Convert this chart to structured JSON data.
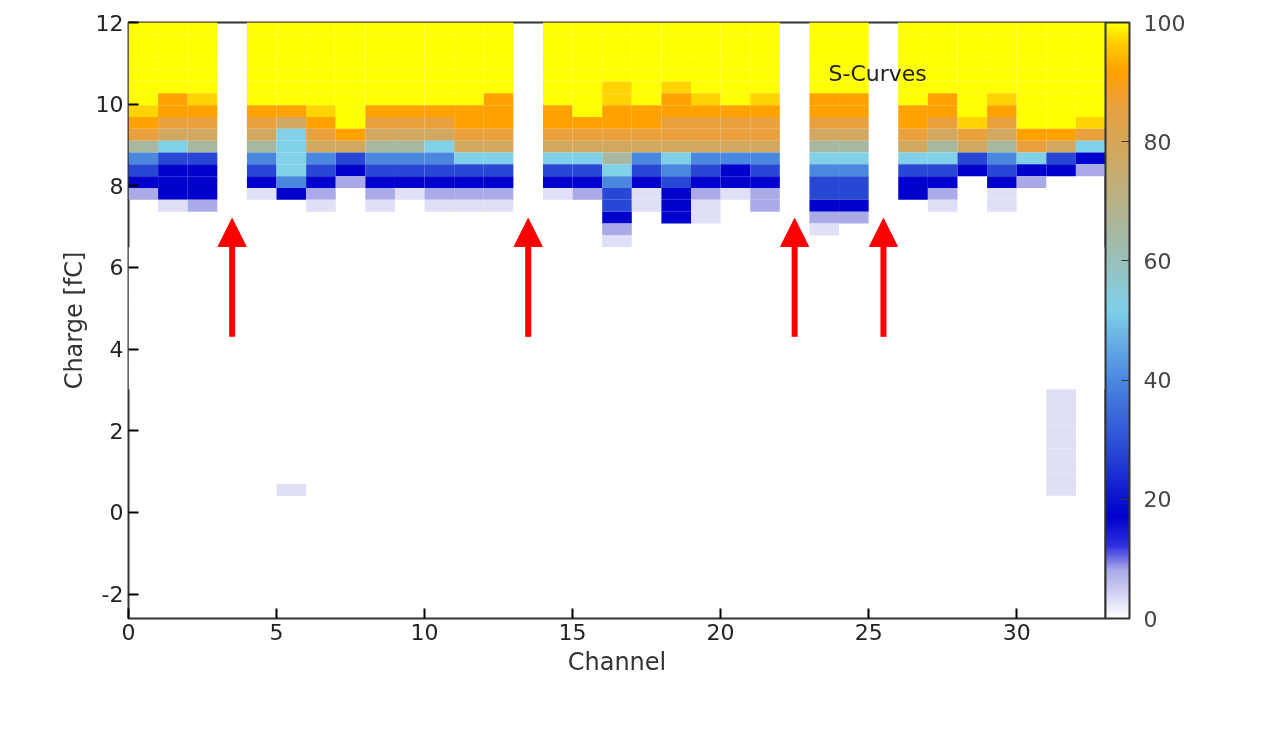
{
  "chart_data": {
    "type": "heatmap",
    "xlabel": "Channel",
    "ylabel": "Charge [fC]",
    "annotations": [
      "S-Curves"
    ],
    "xlim": [
      0,
      33
    ],
    "xticks": [
      0,
      5,
      10,
      15,
      20,
      25,
      30
    ],
    "ylim": [
      -2.6,
      12
    ],
    "yticks": [
      -2,
      0,
      2,
      4,
      6,
      8,
      10,
      12
    ],
    "clim": [
      0,
      100
    ],
    "cticks": [
      0,
      20,
      40,
      60,
      80,
      100
    ],
    "x": [
      0.5,
      1.5,
      2.5,
      3.5,
      4.5,
      5.5,
      6.5,
      7.5,
      8.5,
      9.5,
      10.5,
      11.5,
      12.5,
      13.5,
      14.5,
      15.5,
      16.5,
      17.5,
      18.5,
      19.5,
      20.5,
      21.5,
      22.5,
      23.5,
      24.5,
      25.5,
      26.5,
      27.5,
      28.5,
      29.5,
      30.5,
      31.5,
      32.5
    ],
    "y": [
      11.86,
      11.57,
      11.28,
      10.99,
      10.7,
      10.41,
      10.12,
      9.83,
      9.54,
      9.25,
      8.96,
      8.67,
      8.38,
      8.09,
      7.8,
      7.51,
      7.22,
      6.93,
      6.64,
      6.35,
      6.06,
      5.77,
      5.48,
      5.19,
      4.9,
      4.61,
      4.32,
      4.03,
      3.74,
      3.45,
      3.16,
      2.87,
      2.58,
      2.29,
      2.0,
      1.71,
      1.42,
      1.13,
      0.84,
      0.55
    ],
    "cells": [
      [
        100,
        100,
        100,
        null,
        100,
        100,
        100,
        100,
        100,
        100,
        100,
        100,
        100,
        null,
        100,
        100,
        100,
        100,
        100,
        100,
        100,
        100,
        null,
        100,
        100,
        null,
        100,
        100,
        100,
        100,
        100,
        100,
        100
      ],
      [
        100,
        100,
        100,
        null,
        100,
        100,
        100,
        100,
        100,
        100,
        100,
        100,
        100,
        null,
        100,
        100,
        100,
        100,
        100,
        100,
        100,
        100,
        null,
        100,
        100,
        null,
        100,
        100,
        100,
        100,
        100,
        100,
        100
      ],
      [
        100,
        100,
        100,
        null,
        100,
        100,
        100,
        100,
        100,
        100,
        100,
        100,
        100,
        null,
        100,
        100,
        100,
        100,
        100,
        100,
        100,
        100,
        null,
        100,
        100,
        null,
        100,
        100,
        100,
        100,
        100,
        100,
        100
      ],
      [
        100,
        100,
        100,
        null,
        100,
        100,
        100,
        100,
        100,
        100,
        100,
        100,
        100,
        null,
        100,
        100,
        100,
        100,
        100,
        100,
        100,
        100,
        null,
        100,
        100,
        null,
        100,
        100,
        100,
        100,
        100,
        100,
        100
      ],
      [
        100,
        100,
        100,
        null,
        100,
        100,
        100,
        100,
        100,
        100,
        100,
        100,
        100,
        null,
        100,
        100,
        100,
        100,
        100,
        100,
        100,
        100,
        null,
        100,
        100,
        null,
        100,
        100,
        100,
        100,
        100,
        100,
        100
      ],
      [
        100,
        100,
        100,
        null,
        100,
        100,
        100,
        100,
        100,
        100,
        100,
        100,
        100,
        null,
        100,
        100,
        97,
        100,
        97,
        100,
        100,
        100,
        null,
        100,
        100,
        null,
        100,
        100,
        100,
        100,
        100,
        100,
        100
      ],
      [
        100,
        92,
        97,
        null,
        100,
        100,
        100,
        100,
        100,
        100,
        100,
        100,
        92,
        null,
        100,
        100,
        97,
        100,
        92,
        97,
        100,
        97,
        null,
        92,
        92,
        null,
        100,
        92,
        100,
        97,
        100,
        100,
        100
      ],
      [
        97,
        92,
        92,
        null,
        92,
        92,
        97,
        100,
        92,
        92,
        92,
        92,
        92,
        null,
        92,
        100,
        92,
        92,
        92,
        92,
        92,
        92,
        null,
        92,
        92,
        null,
        92,
        92,
        100,
        92,
        100,
        100,
        100
      ],
      [
        92,
        86,
        86,
        null,
        86,
        78,
        92,
        100,
        86,
        86,
        86,
        92,
        92,
        null,
        92,
        92,
        92,
        92,
        86,
        86,
        86,
        86,
        null,
        86,
        86,
        null,
        92,
        86,
        97,
        86,
        100,
        100,
        97
      ],
      [
        86,
        78,
        78,
        null,
        78,
        52,
        86,
        92,
        78,
        78,
        78,
        86,
        86,
        null,
        86,
        86,
        86,
        86,
        86,
        86,
        86,
        86,
        null,
        78,
        78,
        null,
        86,
        78,
        86,
        78,
        92,
        92,
        86
      ],
      [
        65,
        52,
        65,
        null,
        65,
        52,
        78,
        78,
        65,
        65,
        52,
        78,
        78,
        null,
        78,
        78,
        78,
        78,
        78,
        78,
        78,
        78,
        null,
        65,
        65,
        null,
        78,
        65,
        78,
        65,
        86,
        78,
        52
      ],
      [
        40,
        28,
        28,
        null,
        40,
        52,
        40,
        28,
        40,
        40,
        40,
        52,
        52,
        null,
        52,
        52,
        65,
        40,
        52,
        40,
        40,
        40,
        null,
        52,
        52,
        null,
        52,
        52,
        28,
        40,
        52,
        28,
        17
      ],
      [
        28,
        17,
        17,
        null,
        28,
        52,
        28,
        17,
        28,
        28,
        28,
        28,
        28,
        null,
        28,
        28,
        52,
        28,
        40,
        28,
        17,
        28,
        null,
        40,
        40,
        null,
        28,
        28,
        17,
        28,
        17,
        17,
        8
      ],
      [
        17,
        17,
        17,
        null,
        17,
        40,
        17,
        8,
        17,
        17,
        17,
        17,
        17,
        null,
        17,
        17,
        40,
        17,
        28,
        17,
        17,
        17,
        null,
        28,
        28,
        null,
        17,
        17,
        null,
        17,
        8,
        null,
        null
      ],
      [
        8,
        17,
        17,
        null,
        3,
        17,
        8,
        null,
        8,
        3,
        8,
        8,
        8,
        null,
        3,
        8,
        28,
        3,
        17,
        8,
        3,
        8,
        null,
        28,
        28,
        null,
        17,
        8,
        null,
        3,
        null,
        null,
        null
      ],
      [
        null,
        3,
        8,
        null,
        null,
        null,
        3,
        null,
        3,
        null,
        3,
        3,
        3,
        null,
        null,
        null,
        28,
        3,
        17,
        3,
        null,
        8,
        null,
        17,
        17,
        null,
        null,
        3,
        null,
        3,
        null,
        null,
        null
      ],
      [
        null,
        null,
        null,
        null,
        null,
        null,
        null,
        null,
        null,
        null,
        null,
        null,
        null,
        null,
        null,
        null,
        17,
        null,
        17,
        3,
        null,
        null,
        null,
        8,
        8,
        null,
        null,
        null,
        null,
        null,
        null,
        null,
        null
      ],
      [
        null,
        null,
        null,
        null,
        null,
        null,
        null,
        null,
        null,
        null,
        null,
        null,
        null,
        null,
        null,
        null,
        8,
        null,
        null,
        null,
        null,
        null,
        null,
        3,
        null,
        null,
        null,
        null,
        null,
        null,
        null,
        null,
        null
      ],
      [
        null,
        null,
        null,
        null,
        null,
        null,
        null,
        null,
        null,
        null,
        null,
        null,
        null,
        null,
        null,
        null,
        3,
        null,
        null,
        null,
        null,
        null,
        null,
        null,
        null,
        null,
        null,
        null,
        null,
        null,
        null,
        null,
        null
      ],
      [
        0,
        0,
        0,
        null,
        0,
        0,
        0,
        0,
        0,
        0,
        0,
        0,
        0,
        null,
        0,
        0,
        0,
        0,
        0,
        0,
        0,
        0,
        null,
        0,
        0,
        null,
        0,
        0,
        0,
        0,
        0,
        0,
        0
      ],
      [
        0,
        0,
        0,
        null,
        0,
        0,
        0,
        0,
        0,
        0,
        0,
        0,
        0,
        null,
        0,
        0,
        0,
        0,
        0,
        0,
        0,
        0,
        null,
        0,
        0,
        null,
        0,
        0,
        0,
        0,
        0,
        0,
        0
      ],
      [
        0,
        0,
        0,
        null,
        0,
        0,
        0,
        0,
        0,
        0,
        0,
        0,
        0,
        null,
        0,
        0,
        0,
        0,
        0,
        0,
        0,
        0,
        null,
        0,
        0,
        null,
        0,
        0,
        0,
        0,
        0,
        0,
        0
      ],
      [
        0,
        0,
        0,
        null,
        0,
        0,
        0,
        0,
        0,
        0,
        0,
        0,
        0,
        null,
        0,
        0,
        0,
        0,
        0,
        0,
        0,
        0,
        null,
        0,
        0,
        null,
        0,
        0,
        0,
        0,
        0,
        0,
        0
      ],
      [
        0,
        0,
        0,
        null,
        0,
        0,
        0,
        0,
        0,
        0,
        0,
        0,
        0,
        null,
        0,
        0,
        0,
        0,
        0,
        0,
        0,
        0,
        null,
        0,
        0,
        null,
        0,
        0,
        0,
        0,
        0,
        0,
        0
      ],
      [
        0,
        0,
        0,
        null,
        0,
        0,
        0,
        0,
        0,
        0,
        0,
        0,
        0,
        null,
        0,
        0,
        0,
        0,
        0,
        0,
        0,
        0,
        null,
        0,
        0,
        null,
        0,
        0,
        0,
        0,
        0,
        0,
        0
      ],
      [
        0,
        0,
        0,
        null,
        0,
        0,
        0,
        0,
        0,
        0,
        0,
        0,
        0,
        null,
        0,
        0,
        0,
        0,
        0,
        0,
        0,
        0,
        null,
        0,
        0,
        null,
        0,
        0,
        0,
        0,
        0,
        0,
        0
      ],
      [
        0,
        0,
        0,
        null,
        0,
        0,
        0,
        0,
        0,
        0,
        0,
        0,
        0,
        null,
        0,
        0,
        0,
        0,
        0,
        0,
        0,
        0,
        null,
        0,
        0,
        null,
        0,
        0,
        0,
        0,
        0,
        0,
        0
      ],
      [
        0,
        0,
        0,
        null,
        0,
        0,
        0,
        0,
        0,
        0,
        0,
        0,
        0,
        null,
        0,
        0,
        0,
        0,
        0,
        0,
        0,
        0,
        null,
        0,
        0,
        null,
        0,
        0,
        0,
        0,
        0,
        0,
        0
      ],
      [
        0,
        0,
        0,
        null,
        0,
        0,
        0,
        0,
        0,
        0,
        0,
        0,
        0,
        null,
        0,
        0,
        0,
        0,
        0,
        0,
        0,
        0,
        null,
        0,
        0,
        null,
        0,
        0,
        0,
        0,
        0,
        0,
        0
      ],
      [
        0,
        0,
        0,
        null,
        0,
        0,
        0,
        0,
        0,
        0,
        0,
        0,
        0,
        null,
        0,
        0,
        0,
        0,
        0,
        0,
        0,
        0,
        null,
        0,
        0,
        null,
        0,
        0,
        0,
        0,
        0,
        0,
        0
      ],
      [
        0,
        0,
        0,
        null,
        0,
        0,
        0,
        0,
        0,
        0,
        0,
        0,
        0,
        null,
        0,
        0,
        0,
        0,
        0,
        0,
        0,
        0,
        null,
        0,
        0,
        null,
        0,
        0,
        0,
        0,
        0,
        0,
        0
      ],
      [
        null,
        null,
        null,
        null,
        null,
        null,
        null,
        null,
        null,
        null,
        null,
        null,
        null,
        null,
        null,
        null,
        null,
        null,
        null,
        null,
        null,
        null,
        null,
        null,
        null,
        null,
        null,
        null,
        null,
        null,
        null,
        3,
        null
      ],
      [
        null,
        null,
        null,
        null,
        null,
        null,
        null,
        null,
        null,
        null,
        null,
        null,
        null,
        null,
        null,
        null,
        null,
        null,
        null,
        null,
        null,
        null,
        null,
        null,
        null,
        null,
        null,
        null,
        null,
        null,
        null,
        3,
        null
      ],
      [
        null,
        null,
        null,
        null,
        null,
        null,
        null,
        null,
        null,
        null,
        null,
        null,
        null,
        null,
        null,
        null,
        null,
        null,
        null,
        null,
        null,
        null,
        null,
        null,
        null,
        null,
        null,
        null,
        null,
        null,
        null,
        3,
        null
      ],
      [
        null,
        null,
        null,
        null,
        null,
        null,
        null,
        null,
        null,
        null,
        null,
        null,
        null,
        null,
        null,
        null,
        null,
        null,
        null,
        null,
        null,
        null,
        null,
        null,
        null,
        null,
        null,
        null,
        null,
        null,
        null,
        3,
        null
      ],
      [
        null,
        null,
        null,
        null,
        null,
        null,
        null,
        null,
        null,
        null,
        null,
        null,
        null,
        null,
        null,
        null,
        null,
        null,
        null,
        null,
        null,
        null,
        null,
        null,
        null,
        null,
        null,
        null,
        null,
        null,
        null,
        3,
        null
      ],
      [
        null,
        null,
        null,
        null,
        null,
        null,
        null,
        null,
        null,
        null,
        null,
        null,
        null,
        null,
        null,
        null,
        null,
        null,
        null,
        null,
        null,
        null,
        null,
        null,
        null,
        null,
        null,
        null,
        null,
        null,
        null,
        3,
        null
      ],
      [
        null,
        null,
        null,
        null,
        null,
        null,
        null,
        null,
        null,
        null,
        null,
        null,
        null,
        null,
        null,
        null,
        null,
        null,
        null,
        null,
        null,
        null,
        null,
        null,
        null,
        null,
        null,
        null,
        null,
        null,
        null,
        3,
        null
      ],
      [
        null,
        null,
        null,
        null,
        null,
        null,
        null,
        null,
        null,
        null,
        null,
        null,
        null,
        null,
        null,
        null,
        null,
        null,
        null,
        null,
        null,
        null,
        null,
        null,
        null,
        null,
        null,
        null,
        null,
        null,
        null,
        3,
        null
      ],
      [
        null,
        null,
        null,
        null,
        null,
        3,
        null,
        null,
        null,
        null,
        null,
        null,
        null,
        null,
        null,
        null,
        null,
        null,
        null,
        null,
        null,
        null,
        null,
        null,
        null,
        null,
        null,
        null,
        null,
        null,
        null,
        3,
        null
      ]
    ]
  }
}
